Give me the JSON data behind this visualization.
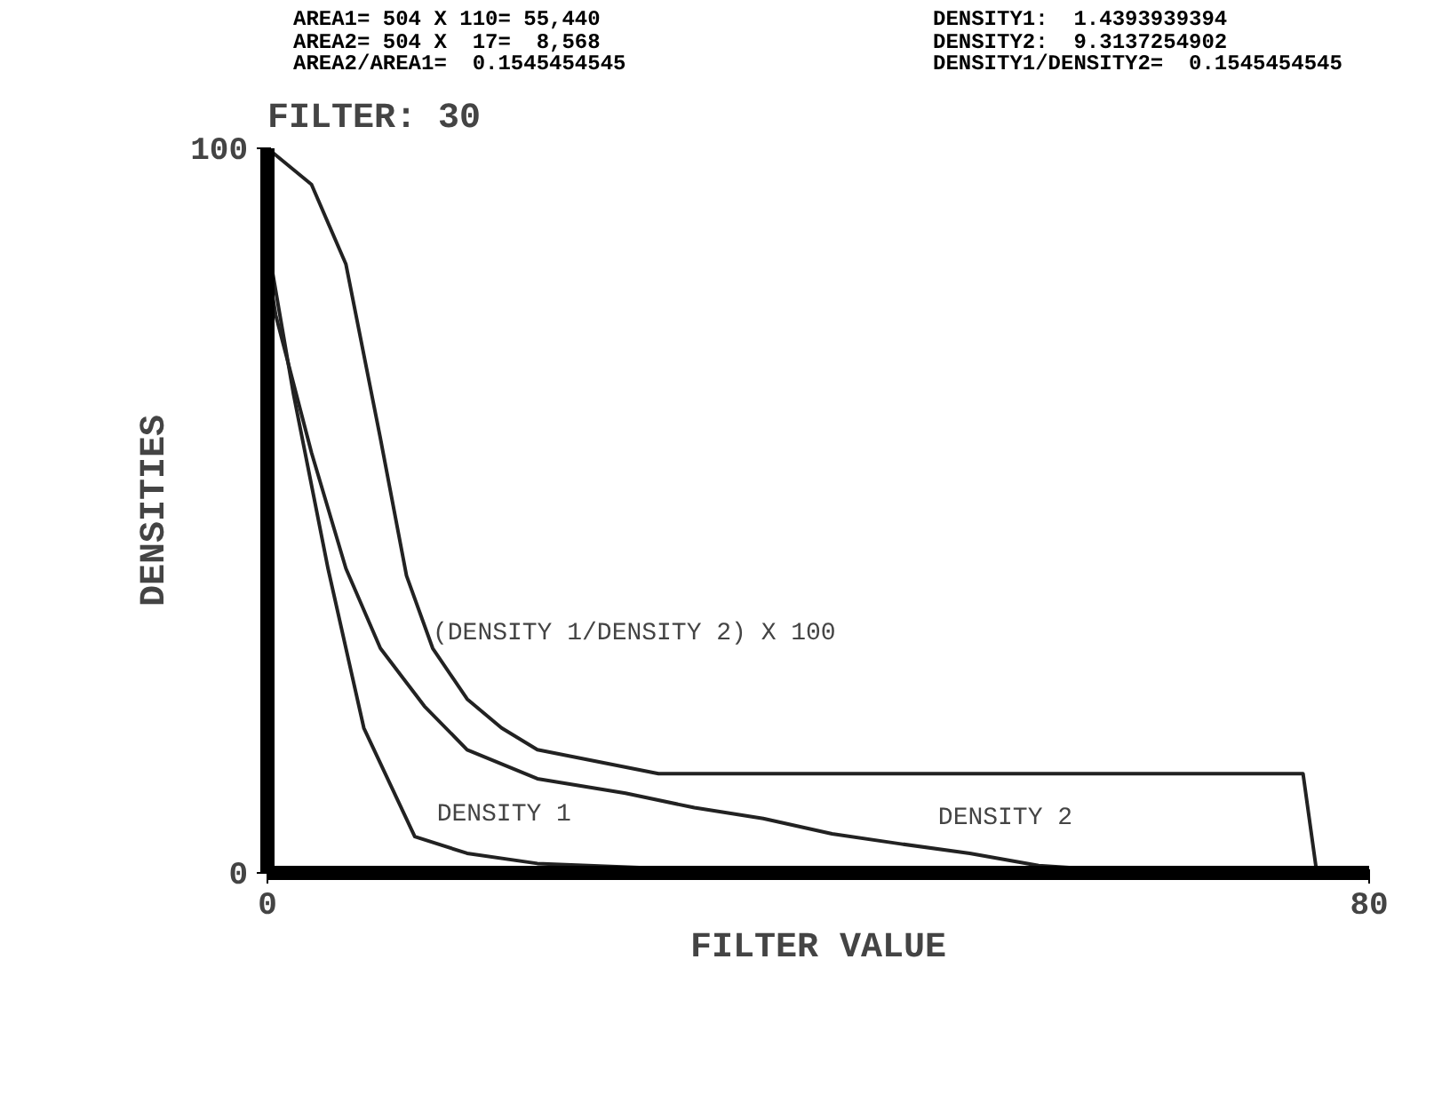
{
  "chart_data": {
    "type": "line",
    "title": "FILTER: 30",
    "xlabel": "FILTER VALUE",
    "ylabel": "DENSITIES",
    "annotations": [
      "AREA1= 504 X 110= 55,440",
      "AREA2= 504 X  17=  8,568",
      "AREA2/AREA1=  0.1545454545",
      "DENSITY1:  1.4393939394",
      "DENSITY2:  9.3137254902",
      "DENSITY1/DENSITY2=  0.1545454545",
      {
        "text": "(DENSITY 1/DENSITY 2) X 100",
        "x": 12,
        "y": 30
      },
      {
        "text": "DENSITY 1",
        "x": 12.3,
        "y": 5
      },
      {
        "text": "DENSITY 2",
        "x": 48.7,
        "y": 4.5
      }
    ],
    "xlim": [
      0,
      80
    ],
    "ylim": [
      0,
      100
    ],
    "xticks": [
      0,
      80
    ],
    "yticks": [
      0,
      100
    ],
    "marker": "none",
    "line_style": "solid",
    "series": [
      {
        "color": "#222222",
        "x": [
          0,
          3.2,
          5.7,
          8.2,
          10.1,
          12,
          14.5,
          17,
          19.6,
          28.4,
          75.2,
          76.2
        ],
        "values": [
          100,
          95,
          84,
          60,
          41,
          31,
          24,
          20,
          17,
          13.7,
          13.7,
          0
        ]
      },
      {
        "color": "#222222",
        "x": [
          0,
          0.6,
          3.2,
          5.7,
          8.2,
          11.4,
          14.5,
          19.6,
          26,
          31,
          36,
          41,
          46,
          51,
          56,
          64
        ],
        "values": [
          84,
          77,
          58,
          42,
          31,
          23,
          17,
          13,
          11,
          9,
          7.5,
          5.4,
          4,
          2.7,
          1,
          0
        ]
      },
      {
        "color": "#222222",
        "x": [
          0,
          1.9,
          4.4,
          7,
          10.7,
          14.5,
          19.6,
          30,
          50
        ],
        "values": [
          87,
          66,
          42,
          20,
          5,
          2.7,
          1.3,
          0.5,
          0
        ]
      }
    ]
  }
}
